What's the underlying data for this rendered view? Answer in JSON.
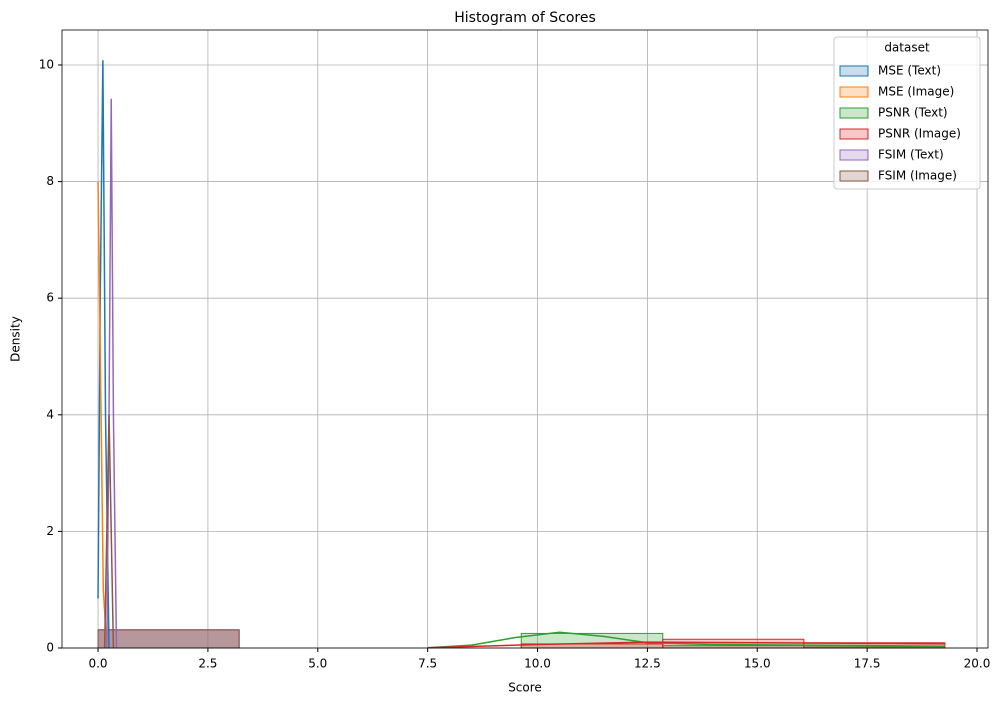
{
  "chart_data": {
    "type": "histogram",
    "title": "Histogram of Scores",
    "x_label": "Score",
    "y_label": "Density",
    "legend_title": "dataset",
    "legend_position": "upper right",
    "grid": true,
    "bins": [
      0.0,
      3.21,
      6.42,
      9.63,
      12.85,
      16.06,
      19.27
    ],
    "xlim": [
      -0.82,
      20.25
    ],
    "ylim": [
      0,
      10.6
    ],
    "xticks": [
      {
        "value": 0,
        "label": "0.0"
      },
      {
        "value": 2.5,
        "label": "2.5"
      },
      {
        "value": 5,
        "label": "5.0"
      },
      {
        "value": 7.5,
        "label": "7.5"
      },
      {
        "value": 10,
        "label": "10.0"
      },
      {
        "value": 12.5,
        "label": "12.5"
      },
      {
        "value": 15,
        "label": "15.0"
      },
      {
        "value": 17.5,
        "label": "17.5"
      },
      {
        "value": 20,
        "label": "20.0"
      }
    ],
    "yticks": [
      0,
      2,
      4,
      6,
      8,
      10
    ],
    "series": [
      {
        "name": "MSE (Text)",
        "color": "#1f77b4",
        "values": [
          0.311,
          0,
          0,
          0,
          0,
          0
        ],
        "kde_x": [
          0.0,
          0.05,
          0.11,
          0.17,
          0.25
        ],
        "kde_y": [
          0.85,
          6,
          10.08,
          4,
          0
        ]
      },
      {
        "name": "MSE (Image)",
        "color": "#ff7f0e",
        "values": [
          0.311,
          0,
          0,
          0,
          0,
          0
        ],
        "kde_x": [
          0.0,
          0.06,
          0.12,
          0.2
        ],
        "kde_y": [
          8.0,
          4.5,
          1,
          0
        ]
      },
      {
        "name": "PSNR (Text)",
        "color": "#2ca02c",
        "values": [
          0,
          0,
          0,
          0.25,
          0.04,
          0.02
        ],
        "kde_x": [
          7.5,
          8.5,
          9.5,
          10.5,
          11.5,
          12.5,
          14,
          16,
          19.27
        ],
        "kde_y": [
          0.005,
          0.05,
          0.18,
          0.27,
          0.2,
          0.09,
          0.06,
          0.05,
          0.03
        ]
      },
      {
        "name": "PSNR (Image)",
        "color": "#d62728",
        "values": [
          0,
          0,
          0,
          0.07,
          0.15,
          0.09
        ],
        "kde_x": [
          7.5,
          10,
          12.5,
          15,
          17.5,
          19.27
        ],
        "kde_y": [
          0.005,
          0.06,
          0.1,
          0.09,
          0.08,
          0.07
        ]
      },
      {
        "name": "FSIM (Text)",
        "color": "#9467bd",
        "values": [
          0.311,
          0,
          0,
          0,
          0,
          0
        ],
        "kde_x": [
          0.2,
          0.25,
          0.3,
          0.35,
          0.42
        ],
        "kde_y": [
          0,
          4,
          9.42,
          4,
          0
        ]
      },
      {
        "name": "FSIM (Image)",
        "color": "#8c564b",
        "values": [
          0.311,
          0,
          0,
          0,
          0,
          0
        ],
        "kde_x": [
          0.15,
          0.25,
          0.35
        ],
        "kde_y": [
          0,
          4,
          0
        ]
      }
    ]
  }
}
